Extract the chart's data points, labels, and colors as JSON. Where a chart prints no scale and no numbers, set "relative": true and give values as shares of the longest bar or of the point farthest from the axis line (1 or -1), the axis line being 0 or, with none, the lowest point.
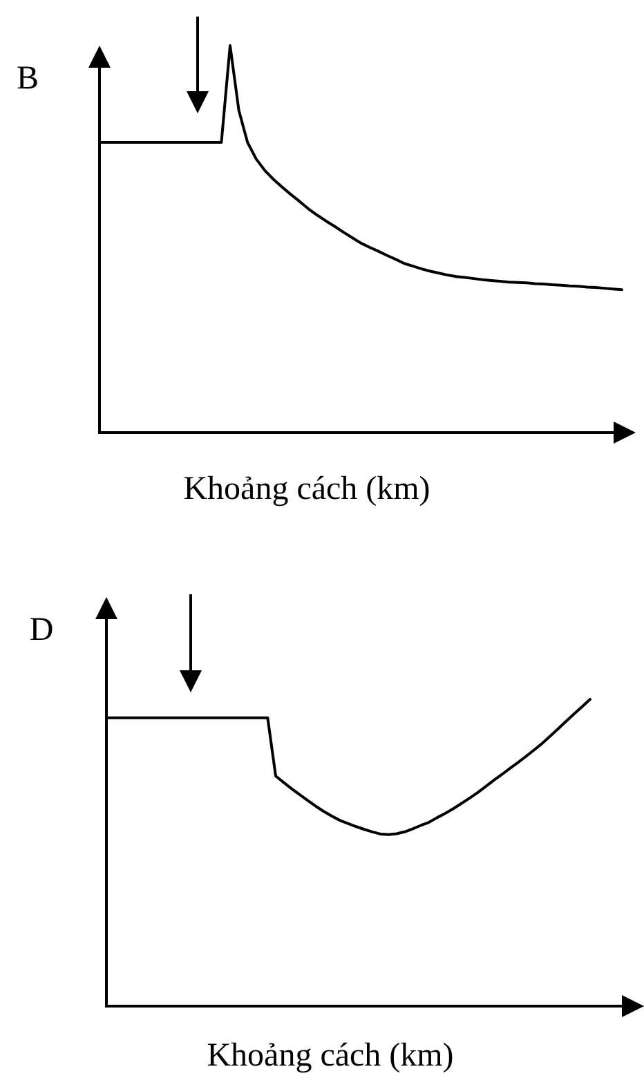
{
  "chart_data": [
    {
      "type": "line",
      "ylabel": "B",
      "xlabel": "Khoảng cách (km)",
      "relative": true,
      "color": "#000000",
      "categories": [
        null,
        null,
        null,
        null,
        null,
        null,
        null,
        null,
        null,
        null,
        null,
        null,
        null,
        null,
        null,
        null,
        null,
        null,
        null,
        null,
        null,
        null,
        null,
        null,
        null,
        null,
        null,
        null,
        null,
        null,
        null,
        null,
        null,
        null,
        null,
        null,
        null,
        null,
        null,
        null,
        null,
        null,
        null,
        null,
        null,
        null,
        null,
        null,
        null,
        null,
        null,
        null,
        null,
        null,
        null,
        null,
        null,
        null,
        null,
        null,
        null
      ],
      "values": [
        0.75,
        0.75,
        0.75,
        0.75,
        0.75,
        0.75,
        0.75,
        0.75,
        0.75,
        0.75,
        0.75,
        0.75,
        0.75,
        0.75,
        0.75,
        1,
        0.833,
        0.75,
        0.707,
        0.677,
        0.654,
        0.634,
        0.615,
        0.597,
        0.578,
        0.562,
        0.547,
        0.533,
        0.518,
        0.504,
        0.49,
        0.479,
        0.469,
        0.458,
        0.448,
        0.437,
        0.43,
        0.423,
        0.417,
        0.412,
        0.407,
        0.403,
        0.401,
        0.398,
        0.395,
        0.393,
        0.391,
        0.389,
        0.388,
        0.387,
        0.385,
        0.384,
        0.382,
        0.381,
        0.379,
        0.378,
        0.376,
        0.375,
        0.373,
        0.371,
        0.369
      ]
    },
    {
      "type": "line",
      "ylabel": "D",
      "xlabel": "Khoảng cách (km)",
      "relative": true,
      "color": "#000000",
      "categories": [
        null,
        null,
        null,
        null,
        null,
        null,
        null,
        null,
        null,
        null,
        null,
        null,
        null,
        null,
        null,
        null,
        null,
        null,
        null,
        null,
        null,
        null,
        null,
        null,
        null,
        null,
        null,
        null,
        null,
        null,
        null,
        null,
        null,
        null,
        null,
        null,
        null,
        null,
        null,
        null,
        null,
        null,
        null,
        null,
        null,
        null,
        null,
        null,
        null,
        null,
        null,
        null,
        null,
        null,
        null,
        null,
        null,
        null,
        null,
        null,
        null
      ],
      "values": [
        0.94,
        0.94,
        0.94,
        0.94,
        0.94,
        0.94,
        0.94,
        0.94,
        0.94,
        0.94,
        0.94,
        0.94,
        0.94,
        0.94,
        0.94,
        0.94,
        0.94,
        0.94,
        0.94,
        0.94,
        0.94,
        0.75,
        0.729,
        0.708,
        0.689,
        0.67,
        0.651,
        0.634,
        0.619,
        0.605,
        0.595,
        0.585,
        0.576,
        0.568,
        0.561,
        0.559,
        0.562,
        0.568,
        0.578,
        0.589,
        0.599,
        0.614,
        0.628,
        0.643,
        0.66,
        0.677,
        0.695,
        0.715,
        0.735,
        0.754,
        0.774,
        0.793,
        0.813,
        0.834,
        0.855,
        0.879,
        0.903,
        0.928,
        0.952,
        0.976,
        1
      ]
    }
  ]
}
